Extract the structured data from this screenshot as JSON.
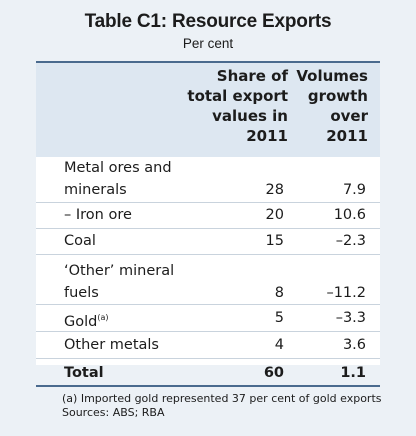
{
  "title": "Table C1: Resource Exports",
  "subtitle": "Per cent",
  "headers": {
    "col1": "Share of\ntotal export\nvalues in\n2011",
    "col2": "Volumes\ngrowth\nover\n2011"
  },
  "rows": [
    {
      "label": "Metal ores and\nminerals",
      "share": "28",
      "growth": "7.9"
    },
    {
      "label": "– Iron ore",
      "share": "20",
      "growth": "10.6"
    },
    {
      "label": "Coal",
      "share": "15",
      "growth": "–2.3"
    },
    {
      "label": "‘Other’ mineral\nfuels",
      "share": "8",
      "growth": "–11.2"
    },
    {
      "label": "Gold",
      "label_sup": "(a)",
      "share": "5",
      "growth": "–3.3"
    },
    {
      "label": "Other metals",
      "share": "4",
      "growth": "3.6"
    }
  ],
  "total": {
    "label": "Total",
    "share": "60",
    "growth": "1.1"
  },
  "footnote": "(a) Imported gold represented 37 per cent of gold exports",
  "sources": "Sources: ABS; RBA"
}
